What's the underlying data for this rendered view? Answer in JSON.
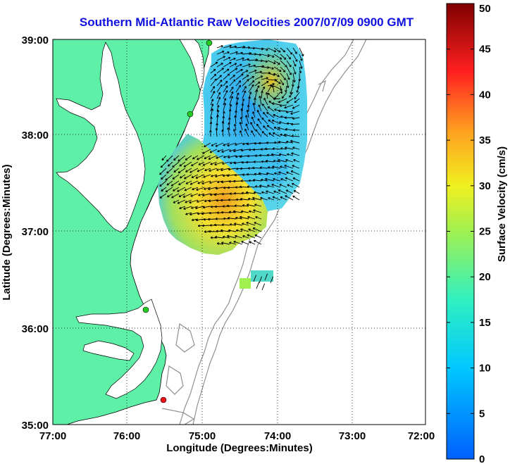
{
  "title": "Southern Mid-Atlantic Raw Velocities 2007/07/09 0900 GMT",
  "axes": {
    "xlabel": "Longitude (Degrees:Minutes)",
    "ylabel": "Latitude (Degrees:Minutes)",
    "xticks": [
      "77:00",
      "76:00",
      "75:00",
      "74:00",
      "73:00",
      "72:00"
    ],
    "yticks": [
      "39:00",
      "38:00",
      "37:00",
      "36:00",
      "35:00"
    ]
  },
  "colorbar": {
    "label": "Surface Velocity (cm/s)",
    "ticks": [
      "50",
      "45",
      "40",
      "35",
      "30",
      "25",
      "20",
      "15",
      "10",
      "5",
      "0"
    ],
    "range": [
      0,
      50
    ]
  },
  "colors": {
    "land": "#5ef0a6",
    "coast": "#000000",
    "bathymetry": "#909090",
    "title": "#1010e0",
    "station_green": "#22cc22",
    "station_red": "#ee1111"
  }
}
